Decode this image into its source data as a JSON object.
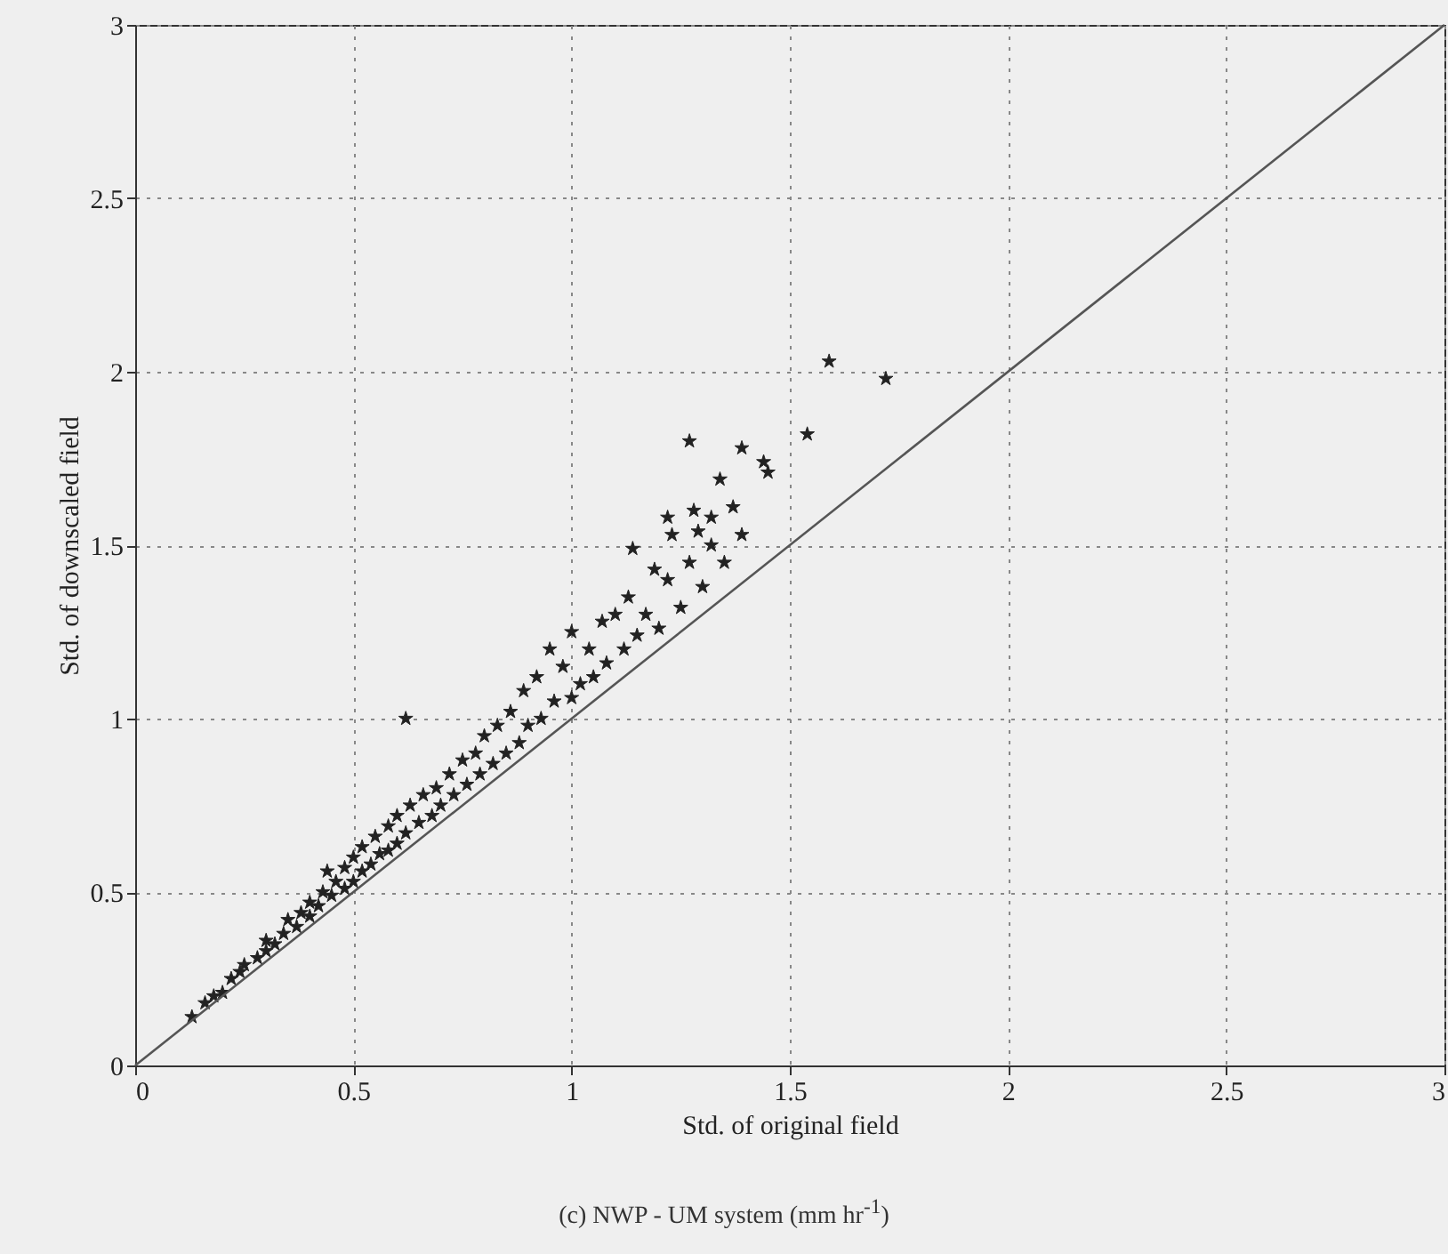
{
  "chart_data": {
    "type": "scatter",
    "xlabel": "Std. of original field",
    "ylabel": "Std. of downscaled field",
    "annotations": [
      "(c) NWP - UM system (mm hr$^{-1}$)"
    ],
    "xlim": [
      0,
      3
    ],
    "ylim": [
      0,
      3
    ],
    "xticks": [
      0,
      0.5,
      1,
      1.5,
      2,
      2.5,
      3
    ],
    "yticks": [
      0,
      0.5,
      1,
      1.5,
      2,
      2.5,
      3
    ],
    "grid": true,
    "series": [
      {
        "marker": "star",
        "color": "#222222",
        "x": [
          0.13,
          0.16,
          0.18,
          0.2,
          0.22,
          0.24,
          0.25,
          0.28,
          0.3,
          0.3,
          0.32,
          0.34,
          0.35,
          0.37,
          0.38,
          0.4,
          0.4,
          0.42,
          0.43,
          0.44,
          0.45,
          0.46,
          0.48,
          0.48,
          0.5,
          0.5,
          0.52,
          0.52,
          0.54,
          0.55,
          0.56,
          0.58,
          0.58,
          0.6,
          0.6,
          0.62,
          0.63,
          0.65,
          0.66,
          0.68,
          0.69,
          0.7,
          0.72,
          0.73,
          0.75,
          0.76,
          0.78,
          0.79,
          0.8,
          0.82,
          0.83,
          0.85,
          0.86,
          0.88,
          0.89,
          0.9,
          0.92,
          0.93,
          0.95,
          0.96,
          0.98,
          1.0,
          1.0,
          1.02,
          1.04,
          1.05,
          1.07,
          1.08,
          1.1,
          1.12,
          1.13,
          1.15,
          1.17,
          1.2,
          1.22,
          1.25,
          1.27,
          1.3,
          0.62,
          1.59,
          1.72,
          1.27,
          1.39,
          1.54,
          1.44,
          1.45,
          1.34,
          1.37,
          1.39,
          1.32,
          1.28,
          1.22,
          1.23,
          1.29,
          1.32,
          1.14,
          1.35,
          1.19
        ],
        "values": [
          0.14,
          0.18,
          0.2,
          0.21,
          0.25,
          0.27,
          0.29,
          0.31,
          0.33,
          0.36,
          0.35,
          0.38,
          0.42,
          0.4,
          0.44,
          0.43,
          0.47,
          0.46,
          0.5,
          0.56,
          0.49,
          0.53,
          0.51,
          0.57,
          0.53,
          0.6,
          0.56,
          0.63,
          0.58,
          0.66,
          0.61,
          0.62,
          0.69,
          0.64,
          0.72,
          0.67,
          0.75,
          0.7,
          0.78,
          0.72,
          0.8,
          0.75,
          0.84,
          0.78,
          0.88,
          0.81,
          0.9,
          0.84,
          0.95,
          0.87,
          0.98,
          0.9,
          1.02,
          0.93,
          1.08,
          0.98,
          1.12,
          1.0,
          1.2,
          1.05,
          1.15,
          1.06,
          1.25,
          1.1,
          1.2,
          1.12,
          1.28,
          1.16,
          1.3,
          1.2,
          1.35,
          1.24,
          1.3,
          1.26,
          1.4,
          1.32,
          1.45,
          1.38,
          1.0,
          2.03,
          1.98,
          1.8,
          1.78,
          1.82,
          1.74,
          1.71,
          1.69,
          1.61,
          1.53,
          1.58,
          1.6,
          1.58,
          1.53,
          1.54,
          1.5,
          1.49,
          1.45,
          1.43
        ]
      },
      {
        "type": "line",
        "color": "#555555",
        "x": [
          0,
          3
        ],
        "values": [
          0,
          3
        ]
      }
    ]
  }
}
